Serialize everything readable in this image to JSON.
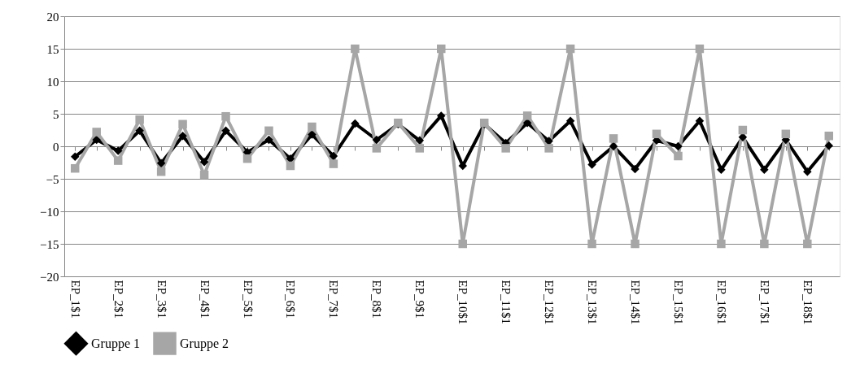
{
  "chart_data": {
    "type": "line",
    "categories": [
      "EP_1$1",
      null,
      "EP_2$1",
      null,
      "EP_3$1",
      null,
      "EP_4$1",
      null,
      "EP_5$1",
      null,
      "EP_6$1",
      null,
      "EP_7$1",
      null,
      "EP_8$1",
      null,
      "EP_9$1",
      null,
      "EP_10$1",
      null,
      "EP_11$1",
      null,
      "EP_12$1",
      null,
      "EP_13$1",
      null,
      "EP_14$1",
      null,
      "EP_15$1",
      null,
      "EP_16$1",
      null,
      "EP_17$1",
      null,
      "EP_18$1",
      null
    ],
    "series": [
      {
        "name": "Gruppe 1",
        "color": "#000000",
        "marker": "diamond",
        "values": [
          -1.6,
          1.0,
          -0.7,
          2.4,
          -2.6,
          1.6,
          -2.4,
          2.4,
          -0.9,
          1.0,
          -1.9,
          1.8,
          -1.5,
          3.5,
          1.0,
          3.4,
          0.9,
          4.7,
          -3.0,
          3.4,
          0.5,
          3.6,
          0.8,
          3.9,
          -2.8,
          0,
          -3.5,
          0.9,
          0,
          3.9,
          -3.6,
          1.4,
          -3.6,
          1.0,
          -3.9,
          0.1
        ]
      },
      {
        "name": "Gruppe 2",
        "color": "#a6a6a6",
        "marker": "square",
        "values": [
          -3.4,
          2.2,
          -2.2,
          4.1,
          -3.9,
          3.4,
          -4.4,
          4.6,
          -1.9,
          2.4,
          -3.0,
          3.0,
          -2.7,
          15,
          -0.3,
          3.6,
          -0.3,
          15,
          -15,
          3.6,
          -0.3,
          4.7,
          -0.3,
          15,
          -15,
          1.2,
          -15,
          1.9,
          -1.5,
          15,
          -15,
          2.5,
          -15,
          1.9,
          -15,
          1.6
        ]
      }
    ],
    "ylim": [
      -20,
      20
    ],
    "yticks": [
      -20,
      -15,
      -10,
      -5,
      0,
      5,
      10,
      15,
      20
    ],
    "grid": "y",
    "legend": "bottom",
    "line_style": "solid"
  }
}
